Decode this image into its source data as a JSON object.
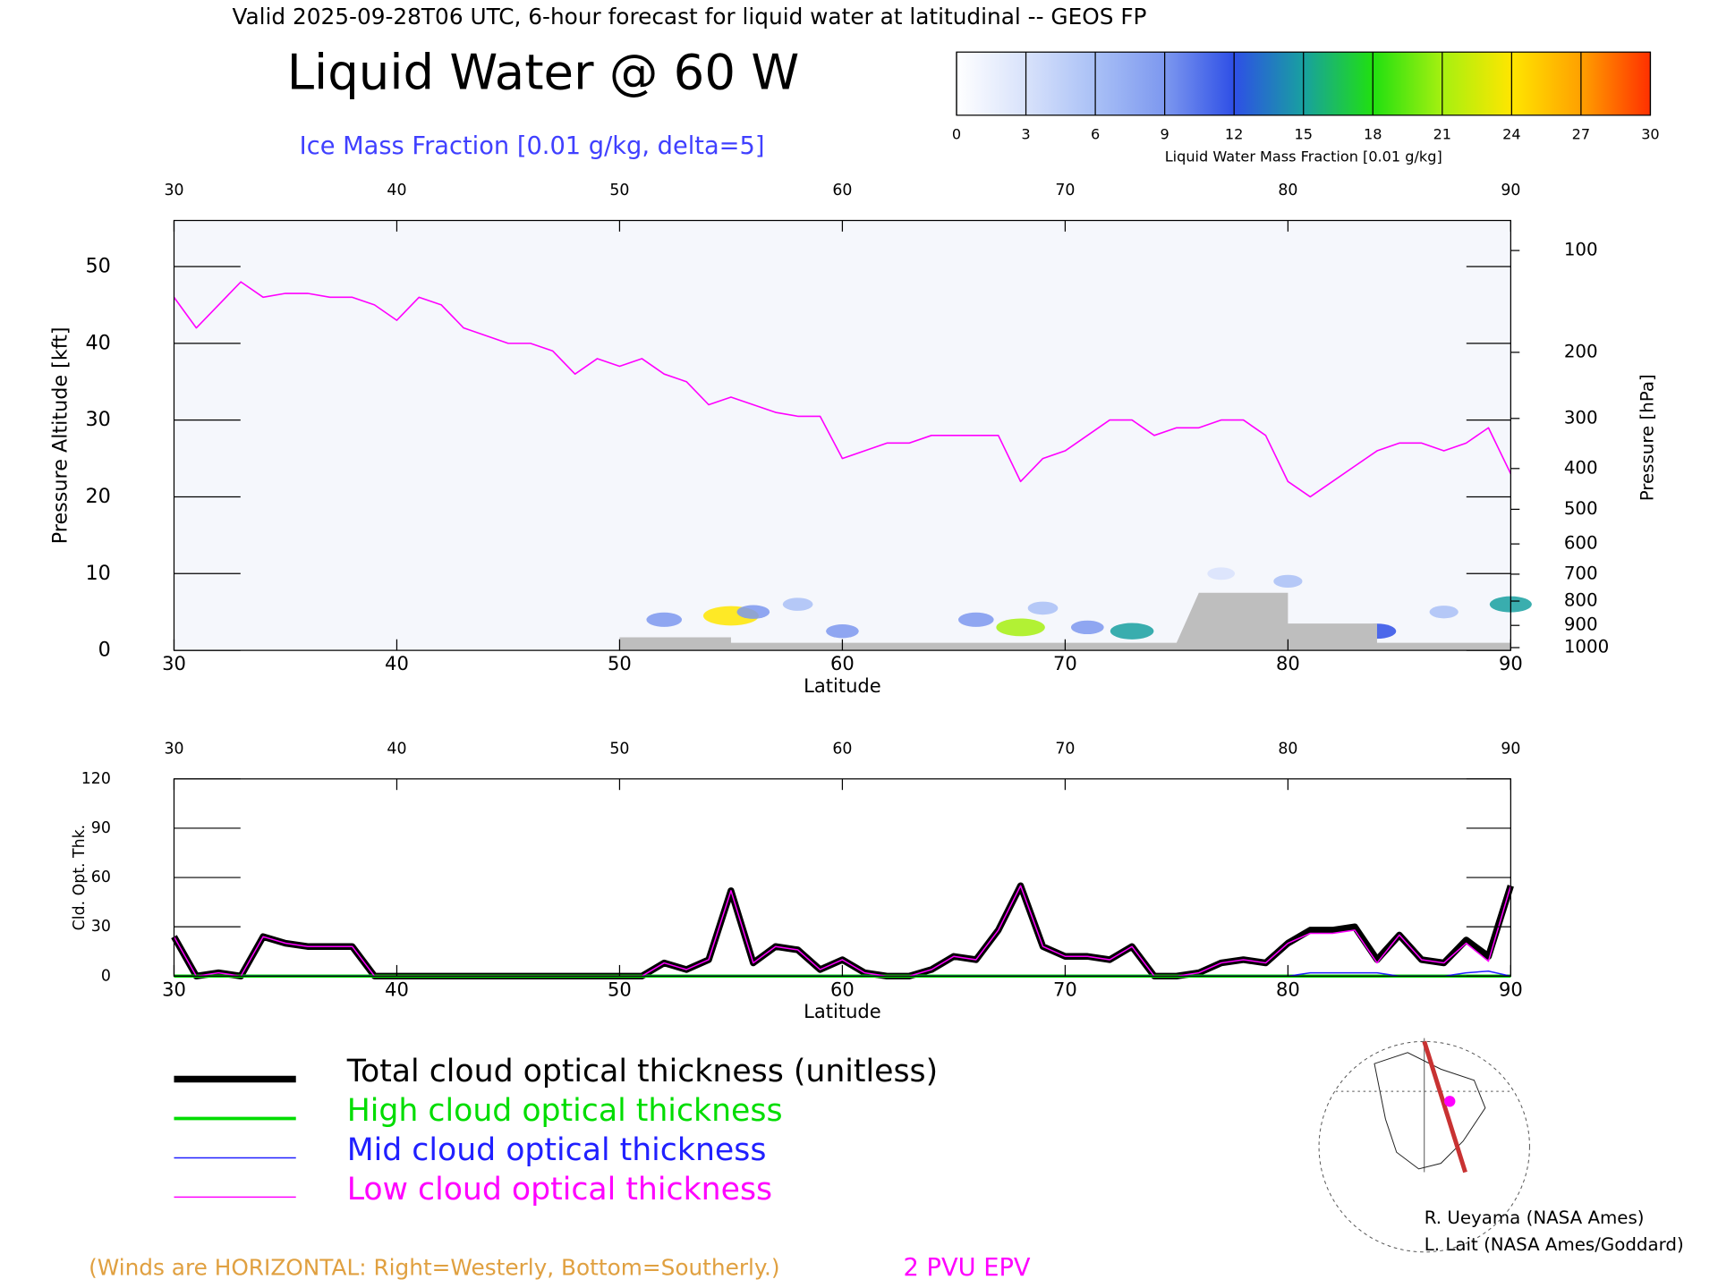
{
  "header": {
    "line": "Valid 2025-09-28T06 UTC, 6-hour forecast for liquid water at latitudinal -- GEOS FP",
    "title": "Liquid Water @ 60 W",
    "subtitle": "Ice Mass Fraction [0.01 g/kg, delta=5]"
  },
  "footer": {
    "winds": "(Winds are HORIZONTAL: Right=Westerly, Bottom=Southerly.)",
    "credits": [
      "R. Ueyama (NASA Ames)",
      "L. Lait (NASA Ames/Goddard)"
    ]
  },
  "chart_data": [
    {
      "type": "line",
      "xlabel": "Latitude",
      "ylabel": "Pressure Altitude [kft]",
      "y2label": "Pressure [hPa]",
      "xlim": [
        30,
        90
      ],
      "xticks": [
        30,
        40,
        50,
        60,
        70,
        80,
        90
      ],
      "ylim": [
        0,
        56
      ],
      "yticks": [
        0,
        10,
        20,
        30,
        40,
        50
      ],
      "y2scale": "standard-atmosphere",
      "y2lim": [
        1013,
        80
      ],
      "y2ticks": [
        100,
        200,
        300,
        400,
        500,
        600,
        700,
        800,
        900,
        1000
      ],
      "series": [
        {
          "name": "2 PVU EPV",
          "color": "#ff00ff",
          "x": [
            30,
            31,
            32,
            33,
            34,
            35,
            36,
            37,
            38,
            39,
            40,
            41,
            42,
            43,
            44,
            45,
            46,
            47,
            48,
            49,
            50,
            51,
            52,
            53,
            54,
            55,
            56,
            57,
            58,
            59,
            60,
            61,
            62,
            63,
            64,
            65,
            66,
            67,
            68,
            69,
            70,
            71,
            72,
            73,
            74,
            75,
            76,
            77,
            78,
            79,
            80,
            81,
            82,
            83,
            84,
            85,
            86,
            87,
            88,
            89,
            90
          ],
          "values": [
            46,
            42,
            45,
            48,
            46,
            46.5,
            46.5,
            46,
            46,
            45,
            43,
            46,
            45,
            42,
            41,
            40,
            40,
            39,
            36,
            38,
            37,
            38,
            36,
            35,
            32,
            33,
            32,
            31,
            30.5,
            30.5,
            25,
            26,
            27,
            27,
            28,
            28,
            28,
            28,
            22,
            25,
            26,
            28,
            30,
            30,
            28,
            29,
            29,
            30,
            30,
            28,
            22,
            20,
            22,
            24,
            26,
            27,
            27,
            26,
            27,
            29,
            23
          ]
        }
      ],
      "terrain": {
        "color": "#bebebe",
        "x": [
          50,
          55,
          55,
          75,
          76,
          80,
          80,
          84,
          84,
          90
        ],
        "values": [
          1.7,
          1.7,
          1,
          1,
          7.5,
          7.5,
          3.5,
          3.5,
          1,
          1
        ]
      },
      "liquid_water": {
        "x": [
          52,
          55,
          56,
          58,
          60,
          66,
          68,
          69,
          71,
          73,
          77,
          80,
          84,
          87,
          90
        ],
        "y": [
          4,
          4.5,
          5,
          6,
          2.5,
          4,
          3,
          5.5,
          3,
          2.5,
          10,
          9,
          2.5,
          5,
          6
        ],
        "values": [
          10,
          25,
          8,
          6,
          8,
          10,
          20,
          6,
          8,
          16,
          4,
          5,
          12,
          5,
          15
        ]
      },
      "colorbar": {
        "label": "Liquid Water Mass Fraction [0.01 g/kg]",
        "ticks": [
          0,
          3,
          6,
          9,
          12,
          15,
          18,
          21,
          24,
          27,
          30
        ],
        "colors": [
          "#ffffff",
          "#d8e2fb",
          "#a9c0f6",
          "#7d98ef",
          "#2e4fe6",
          "#18a0a0",
          "#20e010",
          "#a6f010",
          "#ffe600",
          "#ffa000",
          "#ff3000"
        ]
      }
    },
    {
      "type": "line",
      "xlabel": "Latitude",
      "ylabel": "Cld. Opt. Thk.",
      "xlim": [
        30,
        90
      ],
      "xticks": [
        30,
        40,
        50,
        60,
        70,
        80,
        90
      ],
      "ylim": [
        0,
        120
      ],
      "yticks": [
        0,
        30,
        60,
        90,
        120
      ],
      "x": [
        30,
        31,
        32,
        33,
        34,
        35,
        36,
        37,
        38,
        39,
        40,
        41,
        42,
        43,
        44,
        45,
        46,
        47,
        48,
        49,
        50,
        51,
        52,
        53,
        54,
        55,
        56,
        57,
        58,
        59,
        60,
        61,
        62,
        63,
        64,
        65,
        66,
        67,
        68,
        69,
        70,
        71,
        72,
        73,
        74,
        75,
        76,
        77,
        78,
        79,
        80,
        81,
        82,
        83,
        84,
        85,
        86,
        87,
        88,
        89,
        90
      ],
      "series": [
        {
          "name": "Total cloud optical thickness (unitless)",
          "color": "#000000",
          "line_width": 6,
          "values": [
            24,
            0,
            2,
            0,
            24,
            20,
            18,
            18,
            18,
            0,
            0,
            0,
            0,
            0,
            0,
            0,
            0,
            0,
            0,
            0,
            0,
            0,
            8,
            4,
            10,
            52,
            8,
            18,
            16,
            4,
            10,
            2,
            0,
            0,
            4,
            12,
            10,
            28,
            55,
            18,
            12,
            12,
            10,
            18,
            0,
            0,
            2,
            8,
            10,
            8,
            20,
            28,
            28,
            30,
            10,
            25,
            10,
            8,
            22,
            12,
            55
          ]
        },
        {
          "name": "High cloud optical thickness",
          "color": "#00dd00",
          "line_width": 3,
          "values": [
            0,
            0,
            0,
            0,
            0,
            0,
            0,
            0,
            0,
            0,
            0,
            0,
            0,
            0,
            0,
            0,
            0,
            0,
            0,
            0,
            0,
            0,
            0,
            0,
            0,
            0,
            0,
            0,
            0,
            0,
            0,
            0,
            0,
            0,
            0,
            0,
            0,
            0,
            0,
            0,
            0,
            0,
            0,
            0,
            0,
            0,
            0,
            0,
            0,
            0,
            0,
            0,
            0,
            0,
            0,
            0,
            0,
            0,
            0,
            0,
            0
          ]
        },
        {
          "name": "Mid cloud optical thickness",
          "color": "#2020ff",
          "line_width": 1.2,
          "values": [
            0,
            0,
            0,
            0,
            0,
            0,
            0,
            0,
            0,
            0,
            0,
            0,
            0,
            0,
            0,
            0,
            0,
            0,
            0,
            0,
            0,
            0,
            0,
            0,
            0,
            0,
            0,
            0,
            0,
            0,
            0,
            0,
            0,
            0,
            0,
            0,
            0,
            0,
            0,
            0,
            0,
            0,
            0,
            0,
            0,
            0,
            0,
            0,
            0,
            0,
            0,
            2,
            2,
            2,
            2,
            0,
            0,
            0,
            2,
            3,
            0
          ]
        },
        {
          "name": "Low cloud optical thickness",
          "color": "#ff00ff",
          "line_width": 1.2,
          "values": [
            24,
            0,
            2,
            0,
            24,
            20,
            18,
            18,
            18,
            0,
            0,
            0,
            0,
            0,
            0,
            0,
            0,
            0,
            0,
            0,
            0,
            0,
            8,
            4,
            10,
            52,
            8,
            18,
            16,
            4,
            10,
            2,
            0,
            0,
            4,
            12,
            10,
            28,
            55,
            18,
            12,
            12,
            10,
            18,
            0,
            0,
            2,
            8,
            10,
            8,
            20,
            26,
            26,
            28,
            8,
            25,
            10,
            8,
            20,
            9,
            55
          ]
        }
      ]
    }
  ]
}
